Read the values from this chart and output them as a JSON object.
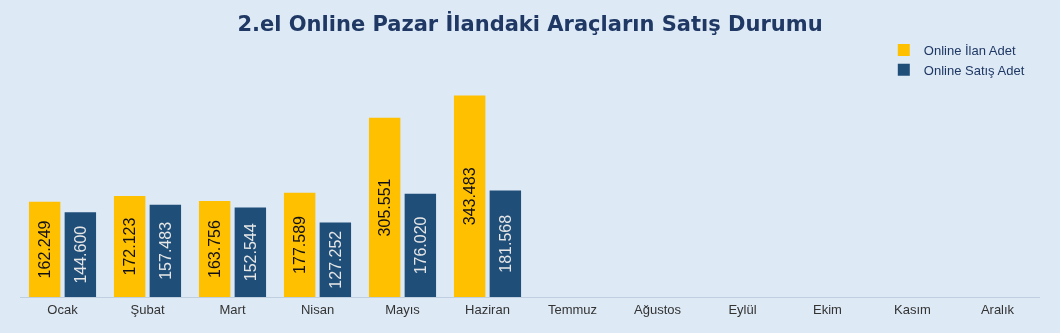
{
  "chart_data": {
    "type": "bar",
    "title": "2.el Online Pazar İlandaki Araçların Satış Durumu",
    "categories": [
      "Ocak",
      "Şubat",
      "Mart",
      "Nisan",
      "Mayıs",
      "Haziran",
      "Temmuz",
      "Ağustos",
      "Eylül",
      "Ekim",
      "Kasım",
      "Aralık"
    ],
    "series": [
      {
        "name": "Online İlan Adet",
        "color": "#ffc000",
        "values": [
          162249,
          172123,
          163756,
          177589,
          305551,
          343483,
          null,
          null,
          null,
          null,
          null,
          null
        ],
        "value_labels": [
          "162.249",
          "172.123",
          "163.756",
          "177.589",
          "305.551",
          "343.483",
          null,
          null,
          null,
          null,
          null,
          null
        ]
      },
      {
        "name": "Online Satış Adet",
        "color": "#1f4e79",
        "values": [
          144600,
          157483,
          152544,
          127252,
          176020,
          181568,
          null,
          null,
          null,
          null,
          null,
          null
        ],
        "value_labels": [
          "144.600",
          "157.483",
          "152.544",
          "127.252",
          "176.020",
          "181.568",
          null,
          null,
          null,
          null,
          null,
          null
        ]
      }
    ],
    "legend": "top right",
    "grid": false
  }
}
